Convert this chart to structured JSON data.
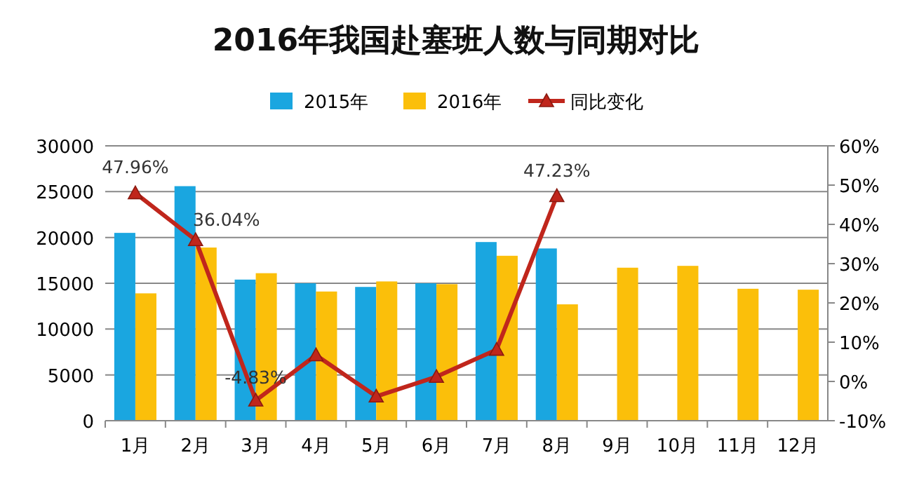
{
  "chart_data": {
    "type": "bar",
    "title": "2016年我国赴塞班人数与同期对比",
    "categories": [
      "1月",
      "2月",
      "3月",
      "4月",
      "5月",
      "6月",
      "7月",
      "8月",
      "9月",
      "10月",
      "11月",
      "12月"
    ],
    "series": [
      {
        "name": "2015年",
        "color": "#1aa6e0",
        "values": [
          20500,
          25600,
          15400,
          15000,
          14600,
          15000,
          19500,
          18800,
          null,
          null,
          null,
          null
        ]
      },
      {
        "name": "2016年",
        "color": "#fbbf0a",
        "values": [
          13900,
          18900,
          16100,
          14100,
          15200,
          14900,
          18000,
          12700,
          16700,
          16900,
          14400,
          14300
        ]
      },
      {
        "name": "同比变化",
        "type": "line",
        "axis": "y2",
        "color": "#c0261c",
        "marker": "triangle",
        "values": [
          47.96,
          36.04,
          -4.83,
          6.7,
          -3.8,
          1.2,
          8.1,
          47.23,
          null,
          null,
          null,
          null
        ],
        "value_labels": [
          "47.96%",
          "36.04%",
          "-4.83%",
          null,
          null,
          null,
          null,
          "47.23%",
          null,
          null,
          null,
          null
        ]
      }
    ],
    "ylim": [
      0,
      30000
    ],
    "yticks": [
      0,
      5000,
      10000,
      15000,
      20000,
      25000,
      30000
    ],
    "y2lim": [
      -10,
      60
    ],
    "y2ticks": [
      {
        "value": -10,
        "label": "-10%"
      },
      {
        "value": 0,
        "label": "0%"
      },
      {
        "value": 10,
        "label": "10%"
      },
      {
        "value": 20,
        "label": "20%"
      },
      {
        "value": 30,
        "label": "30%"
      },
      {
        "value": 40,
        "label": "40%"
      },
      {
        "value": 50,
        "label": "50%"
      },
      {
        "value": 60,
        "label": "60%"
      }
    ],
    "grid": "y",
    "legend": "top"
  }
}
